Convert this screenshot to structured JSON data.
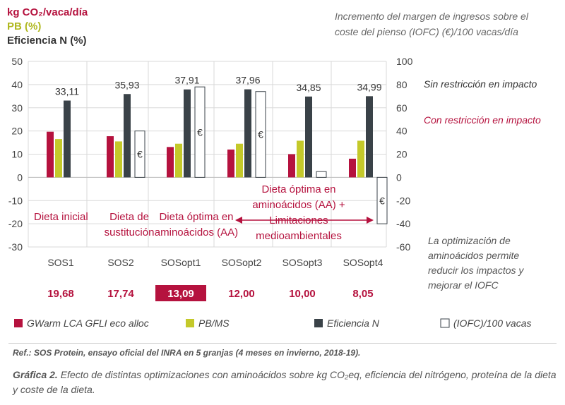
{
  "chart_data": {
    "type": "bar",
    "left_axis_labels": {
      "co2": "kg CO₂/vaca/día",
      "pb": "PB (%)",
      "ef": "Eficiencia N (%)"
    },
    "right_axis_title": [
      "Incremento del margen de ingresos sobre el",
      "coste del pienso (IOFC) (€)/100 vacas/día"
    ],
    "ylim_left": [
      -30,
      50
    ],
    "yticks_left": [
      -30,
      -20,
      -10,
      0,
      10,
      20,
      30,
      40,
      50
    ],
    "ylim_right": [
      -60,
      100
    ],
    "yticks_right": [
      -60,
      -40,
      -20,
      0,
      20,
      40,
      60,
      80,
      100
    ],
    "categories": [
      "SOS1",
      "SOS2",
      "SOSopt1",
      "SOSopt2",
      "SOSopt3",
      "SOSopt4"
    ],
    "series": [
      {
        "name": "GWarm LCA GFLI eco alloc",
        "axis": "left",
        "color": "#b5123e",
        "values": [
          19.68,
          17.74,
          13.09,
          12.0,
          10.0,
          8.05
        ]
      },
      {
        "name": "PB/MS",
        "axis": "left",
        "color": "#c4c92a",
        "values": [
          16.5,
          15.5,
          14.5,
          14.5,
          15.8,
          15.8
        ]
      },
      {
        "name": "Eficiencia N",
        "axis": "left",
        "color": "#3a4248",
        "values": [
          33.11,
          35.93,
          37.91,
          37.96,
          34.85,
          34.99
        ]
      },
      {
        "name": "(IOFC)/100 vacas",
        "axis": "right",
        "color": "#ffffff",
        "values": [
          0,
          40,
          78,
          74,
          5,
          -40
        ]
      }
    ],
    "eff_labels": [
      "33,11",
      "35,93",
      "37,91",
      "37,96",
      "34,85",
      "34,99"
    ],
    "co2_labels": [
      "19,68",
      "17,74",
      "13,09",
      "12,00",
      "10,00",
      "8,05"
    ],
    "highlighted_co2_index": 2,
    "euro_symbol": "€",
    "annotations": {
      "dieta_inicial": "Dieta inicial",
      "dieta_sustitucion": [
        "Dieta de",
        "sustitución"
      ],
      "dieta_optima": [
        "Dieta óptima en",
        "aminoácidos (AA)"
      ],
      "dieta_optima_lim": [
        "Dieta óptima en",
        "aminoácidos (AA) +",
        "Limitaciones",
        "medioambientales"
      ],
      "sin_restriccion": "Sin restricción en impacto",
      "con_restriccion": "Con restricción en impacto",
      "note": [
        "La optimización de",
        "aminoácidos permite",
        "reducir los impactos y",
        "mejorar el IOFC"
      ]
    },
    "legend": [
      "GWarm LCA GFLI eco alloc",
      "PB/MS",
      "Eficiencia N",
      "(IOFC)/100 vacas"
    ],
    "grid": true,
    "legend_position": "bottom"
  },
  "ref_text": "Ref.: SOS Protein, ensayo oficial del INRA en 5 granjas (4 meses en invierno, 2018-19).",
  "caption": {
    "label": "Gráfica 2.",
    "text": " Efecto de distintas optimizaciones con aminoácidos sobre kg CO₂eq, eficiencia del nitrógeno, proteína de la dieta y coste de la dieta."
  }
}
